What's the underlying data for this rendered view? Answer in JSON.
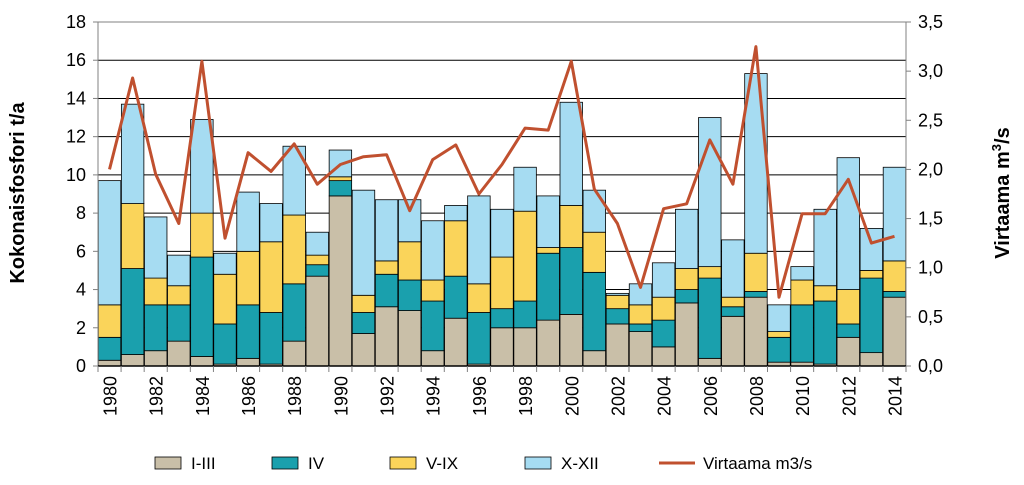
{
  "chart_data": {
    "type": "bar",
    "stacked": true,
    "categories": [
      "1980",
      "1981",
      "1982",
      "1983",
      "1984",
      "1985",
      "1986",
      "1987",
      "1988",
      "1989",
      "1990",
      "1991",
      "1992",
      "1993",
      "1994",
      "1995",
      "1996",
      "1997",
      "1998",
      "1999",
      "2000",
      "2001",
      "2002",
      "2003",
      "2004",
      "2005",
      "2006",
      "2007",
      "2008",
      "2009",
      "2010",
      "2011",
      "2012",
      "2013",
      "2014"
    ],
    "x_tick_labels": [
      "1980",
      "1982",
      "1984",
      "1986",
      "1988",
      "1990",
      "1992",
      "1994",
      "1996",
      "1998",
      "2000",
      "2002",
      "2004",
      "2006",
      "2008",
      "2010",
      "2012",
      "2014"
    ],
    "ylabel": "Kokonaisfosfori t/a",
    "ylim": [
      0,
      18
    ],
    "y_ticks": [
      "0",
      "2",
      "4",
      "6",
      "8",
      "10",
      "12",
      "14",
      "16",
      "18"
    ],
    "y2label": "Virtaama m³/s",
    "y2lim": [
      0,
      3.5
    ],
    "y2_ticks": [
      "0,0",
      "0,5",
      "1,0",
      "1,5",
      "2,0",
      "2,5",
      "3,0",
      "3,5"
    ],
    "grid": true,
    "legend_position": "bottom",
    "series": [
      {
        "name": "I-III",
        "color": "#c9bfa8",
        "values": [
          0.3,
          0.6,
          0.8,
          1.3,
          0.5,
          0.1,
          0.4,
          0.1,
          1.3,
          4.7,
          8.9,
          1.7,
          3.1,
          2.9,
          0.8,
          2.5,
          0.1,
          2.0,
          2.0,
          2.4,
          2.7,
          0.8,
          2.2,
          1.8,
          1.0,
          3.3,
          0.4,
          2.6,
          3.6,
          0.2,
          0.2,
          0.1,
          1.5,
          0.7,
          3.6
        ]
      },
      {
        "name": "IV",
        "color": "#1aa0ad",
        "values": [
          1.2,
          4.5,
          2.4,
          1.9,
          5.2,
          2.1,
          2.8,
          2.7,
          3.0,
          0.6,
          0.8,
          1.1,
          1.7,
          1.6,
          2.6,
          2.2,
          2.7,
          1.0,
          1.4,
          3.5,
          3.5,
          4.1,
          0.8,
          0.4,
          1.4,
          0.7,
          4.2,
          0.5,
          0.3,
          1.3,
          3.0,
          3.3,
          0.7,
          3.9,
          0.3
        ]
      },
      {
        "name": "V-IX",
        "color": "#fad45a",
        "values": [
          1.7,
          3.4,
          1.4,
          1.0,
          2.3,
          2.6,
          2.8,
          3.7,
          3.6,
          0.5,
          0.2,
          0.9,
          0.7,
          2.0,
          1.1,
          2.9,
          1.5,
          2.7,
          4.7,
          0.3,
          2.2,
          2.1,
          0.7,
          1.0,
          1.2,
          1.1,
          0.6,
          0.5,
          2.0,
          0.3,
          1.3,
          0.8,
          1.8,
          0.4,
          1.6
        ]
      },
      {
        "name": "X-XII",
        "color": "#a6dcf2",
        "values": [
          6.5,
          5.2,
          3.2,
          1.6,
          4.9,
          1.1,
          3.1,
          2.0,
          3.6,
          1.2,
          1.4,
          5.5,
          3.2,
          2.2,
          3.1,
          0.8,
          4.6,
          2.5,
          2.3,
          2.7,
          5.4,
          2.2,
          0.1,
          1.1,
          1.8,
          3.1,
          7.8,
          3.0,
          9.4,
          1.4,
          0.7,
          4.0,
          6.9,
          2.2,
          4.9
        ]
      }
    ],
    "line_series": {
      "name": "Virtaama m3/s",
      "color": "#c0502f",
      "axis": "right",
      "values": [
        2.0,
        2.93,
        1.95,
        1.45,
        3.1,
        1.3,
        2.17,
        1.98,
        2.26,
        1.85,
        2.05,
        2.13,
        2.15,
        1.58,
        2.1,
        2.25,
        1.75,
        2.05,
        2.42,
        2.4,
        3.1,
        1.8,
        1.45,
        0.8,
        1.6,
        1.65,
        2.3,
        1.85,
        3.25,
        0.7,
        1.55,
        1.55,
        1.9,
        1.25,
        1.32
      ]
    }
  }
}
